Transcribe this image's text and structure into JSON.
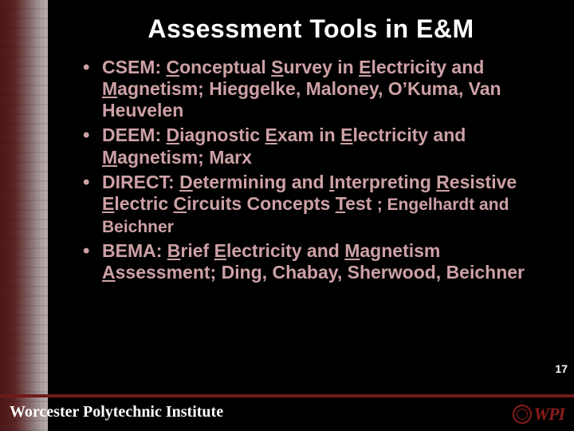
{
  "colors": {
    "background": "#000000",
    "body_text": "#cda1a5",
    "title_text": "#ffffff",
    "footer_text": "#ffffff",
    "accent_bar": "#6e1a1a",
    "logo_color": "#8a1c1c"
  },
  "title": "Assessment Tools in E&M",
  "bullets": [
    {
      "html": "CSEM:  <span class='u'>C</span>onceptual <span class='u'>S</span>urvey in <span class='u'>E</span>lectricity and <span class='u'>M</span>agnetism;  Hieggelke, Maloney, O’Kuma, Van Heuvelen"
    },
    {
      "html": "DEEM:  <span class='u'>D</span>iagnostic <span class='u'>E</span>xam in <span class='u'>E</span>lectricity and <span class='u'>M</span>agnetism; Marx"
    },
    {
      "html": "DIRECT:  <span class='u'>D</span>etermining and <span class='u'>I</span>nterpreting <span class='u'>R</span>esistive <span class='u'>E</span>lectric <span class='u'>C</span>ircuits Concepts <span class='u'>T</span>est <span class='smalltail'>; Engelhardt and Beichner</span>"
    },
    {
      "html": "BEMA: <span class='u'>B</span>rief <span class='u'>E</span>lectricity and <span class='u'>M</span>agnetism <span class='u'>A</span>ssessment; Ding, Chabay, Sherwood, Beichner"
    }
  ],
  "page_number": "17",
  "footer": "Worcester Polytechnic Institute",
  "logo_text": "WPI"
}
